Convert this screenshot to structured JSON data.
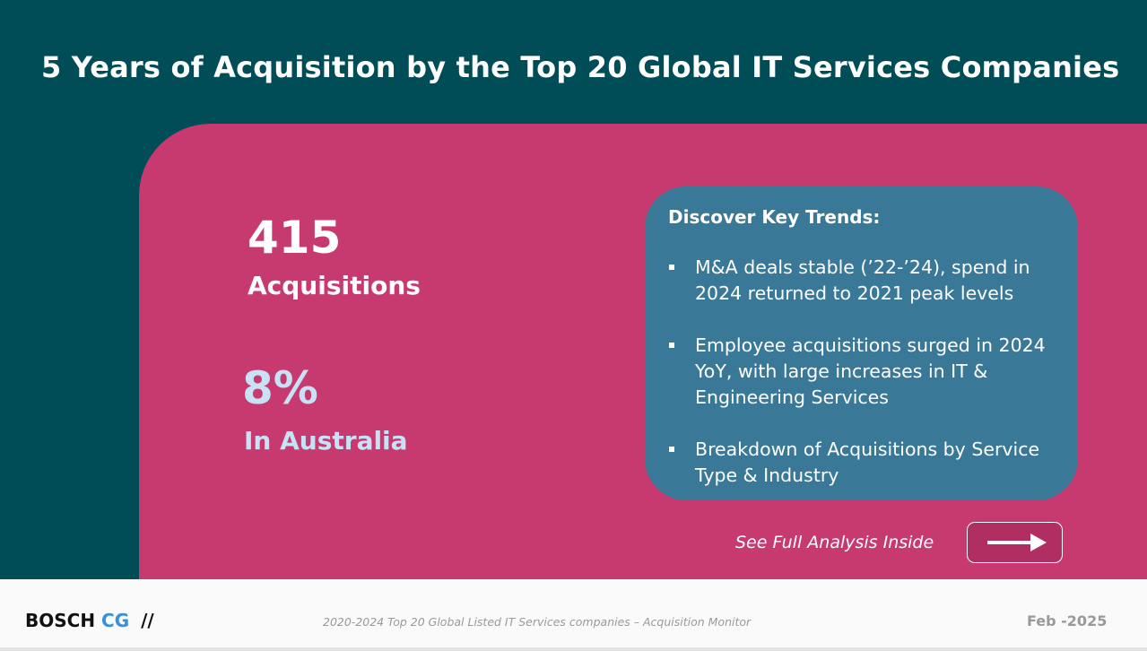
{
  "header": {
    "title": "5 Years of Acquisition by the Top 20 Global IT Services Companies"
  },
  "stats": [
    {
      "value": "415",
      "label": "Acquisitions"
    },
    {
      "value": "8%",
      "label": "In Australia"
    }
  ],
  "trends": {
    "heading": "Discover  Key Trends:",
    "items": [
      "M&A deals stable (’22-’24), spend in 2024 returned to 2021 peak levels",
      "Employee acquisitions surged in 2024 YoY, with large increases in IT & Engineering Services",
      "Breakdown of Acquisitions by Service Type & Industry"
    ]
  },
  "cta": {
    "text": "See Full Analysis Inside"
  },
  "footer": {
    "brand": "BOSCH",
    "brand_accent": "CG",
    "brand_mark": "//",
    "caption": "2020-2024  Top 20 Global Listed IT Services companies –  Acquisition Monitor",
    "date": "Feb -2025"
  }
}
